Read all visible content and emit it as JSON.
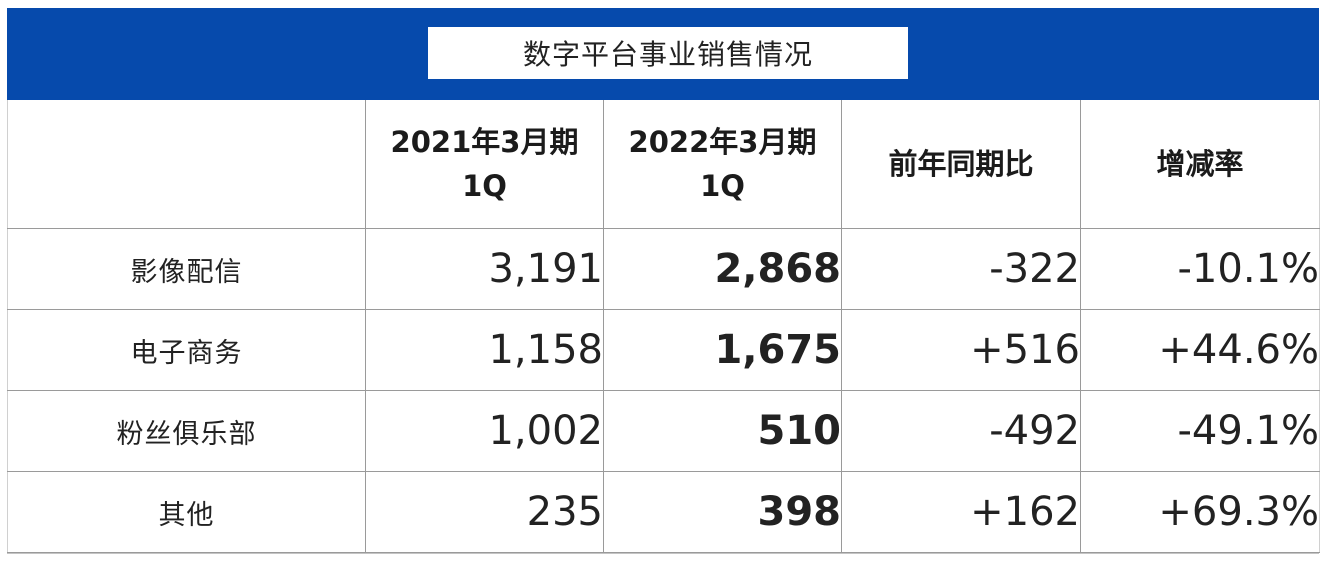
{
  "title": "数字平台事业销售情况",
  "colors": {
    "header_band": "#064aac",
    "highlight_value": "#1b56b8",
    "text": "#222222",
    "grid": "#9a9a9a"
  },
  "table": {
    "columns": [
      {
        "line1": "",
        "line2": ""
      },
      {
        "line1": "2021年3月期",
        "line2": "1Q"
      },
      {
        "line1": "2022年3月期",
        "line2": "1Q"
      },
      {
        "line1": "前年同期比",
        "line2": ""
      },
      {
        "line1": "增减率",
        "line2": ""
      }
    ],
    "rows": [
      {
        "label": "影像配信",
        "fy2021": "3,191",
        "fy2022": "2,868",
        "yoy": "-322",
        "rate": "-10.1%"
      },
      {
        "label": "电子商务",
        "fy2021": "1,158",
        "fy2022": "1,675",
        "yoy": "+516",
        "rate": "+44.6%"
      },
      {
        "label": "粉丝俱乐部",
        "fy2021": "1,002",
        "fy2022": "510",
        "yoy": "-492",
        "rate": "-49.1%"
      },
      {
        "label": "其他",
        "fy2021": "235",
        "fy2022": "398",
        "yoy": "+162",
        "rate": "+69.3%"
      }
    ]
  }
}
